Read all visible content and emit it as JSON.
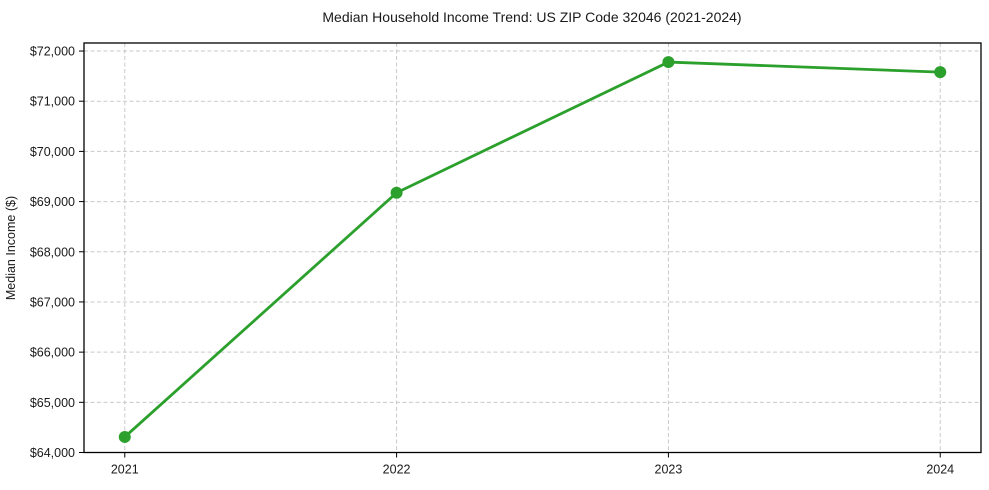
{
  "chart_data": {
    "type": "line",
    "title": "Median Household Income Trend: US ZIP Code 32046 (2021-2024)",
    "xlabel": "",
    "ylabel": "Median Income ($)",
    "x": [
      2021,
      2022,
      2023,
      2024
    ],
    "series": [
      {
        "name": "Median Household Income",
        "values": [
          64310,
          69175,
          71780,
          71580
        ]
      }
    ],
    "xtick_labels": [
      "2021",
      "2022",
      "2023",
      "2024"
    ],
    "ytick_values": [
      64000,
      65000,
      66000,
      67000,
      68000,
      69000,
      70000,
      71000,
      72000
    ],
    "ytick_labels": [
      "$64,000",
      "$65,000",
      "$66,000",
      "$67,000",
      "$68,000",
      "$69,000",
      "$70,000",
      "$71,000",
      "$72,000"
    ],
    "xlim": [
      2020.85,
      2024.15
    ],
    "ylim": [
      64000,
      72160
    ],
    "grid": "dashed-both-axes",
    "legend": "none",
    "line_color": "#2ca02c",
    "marker": "circle",
    "marker_radius": 6,
    "grid_color": "#c9c9c9",
    "frame_color": "#000000",
    "background_color": "#ffffff"
  }
}
